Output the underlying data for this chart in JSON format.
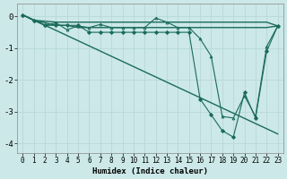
{
  "xlabel": "Humidex (Indice chaleur)",
  "ylabel": "",
  "background_color": "#cce8e8",
  "grid_color": "#b8d8d8",
  "line_color": "#1a6b5a",
  "xlim": [
    -0.5,
    23.5
  ],
  "ylim": [
    -4.3,
    0.4
  ],
  "yticks": [
    0,
    -1,
    -2,
    -3,
    -4
  ],
  "xticks": [
    0,
    1,
    2,
    3,
    4,
    5,
    6,
    7,
    8,
    9,
    10,
    11,
    12,
    13,
    14,
    15,
    16,
    17,
    18,
    19,
    20,
    21,
    22,
    23
  ],
  "series": [
    {
      "x": [
        0,
        1,
        2,
        3,
        4,
        5,
        6,
        7,
        8,
        9,
        10,
        11,
        12,
        13,
        14,
        15,
        16,
        17,
        18,
        19,
        20,
        21,
        22,
        23
      ],
      "y": [
        0.05,
        -0.12,
        -0.15,
        -0.18,
        -0.18,
        -0.18,
        -0.18,
        -0.18,
        -0.18,
        -0.18,
        -0.18,
        -0.18,
        -0.18,
        -0.18,
        -0.18,
        -0.18,
        -0.18,
        -0.18,
        -0.18,
        -0.18,
        -0.18,
        -0.18,
        -0.18,
        -0.3
      ],
      "marker": null,
      "linestyle": "-",
      "linewidth": 1.0
    },
    {
      "x": [
        0,
        1,
        2,
        3,
        4,
        5,
        6,
        7,
        8,
        9,
        10,
        11,
        12,
        13,
        14,
        15,
        16,
        17,
        18,
        19,
        20,
        21,
        22,
        23
      ],
      "y": [
        0.05,
        -0.12,
        -0.2,
        -0.28,
        -0.28,
        -0.35,
        -0.35,
        -0.35,
        -0.35,
        -0.35,
        -0.35,
        -0.35,
        -0.35,
        -0.35,
        -0.35,
        -0.35,
        -0.35,
        -0.35,
        -0.35,
        -0.35,
        -0.35,
        -0.35,
        -0.35,
        -0.3
      ],
      "marker": null,
      "linestyle": "-",
      "linewidth": 1.0
    },
    {
      "x": [
        0,
        23
      ],
      "y": [
        0.05,
        -3.7
      ],
      "marker": null,
      "linestyle": "-",
      "linewidth": 1.0
    },
    {
      "x": [
        0,
        1,
        2,
        3,
        4,
        5,
        6,
        7,
        8,
        9,
        10,
        11,
        12,
        13,
        14,
        15,
        16,
        17,
        18,
        19,
        20,
        21,
        22,
        23
      ],
      "y": [
        0.05,
        -0.12,
        -0.28,
        -0.2,
        -0.42,
        -0.3,
        -0.35,
        -0.25,
        -0.35,
        -0.35,
        -0.35,
        -0.35,
        -0.05,
        -0.18,
        -0.35,
        -0.35,
        -0.7,
        -1.25,
        -3.15,
        -3.2,
        -2.5,
        -3.15,
        -0.95,
        -0.3
      ],
      "marker": "^",
      "linestyle": "-",
      "linewidth": 0.8,
      "markersize": 2.0
    },
    {
      "comment": "diamond markers - flat near -0.2 to x=15, then drops to -2.6 at x=16, -3.1 at x=17, -3.6 at x=18, -3.8 at x=19, back to -2.4 at x=20, -3.2 at x=21, -1.1 at x=22, -0.3 at x=23",
      "x": [
        0,
        1,
        2,
        3,
        4,
        5,
        6,
        7,
        8,
        9,
        10,
        11,
        12,
        13,
        14,
        15,
        16,
        17,
        18,
        19,
        20,
        21,
        22,
        23
      ],
      "y": [
        0.05,
        -0.12,
        -0.28,
        -0.28,
        -0.28,
        -0.28,
        -0.5,
        -0.5,
        -0.5,
        -0.5,
        -0.5,
        -0.5,
        -0.5,
        -0.5,
        -0.5,
        -0.5,
        -2.6,
        -3.1,
        -3.6,
        -3.8,
        -2.4,
        -3.2,
        -1.1,
        -0.3
      ],
      "marker": "D",
      "linestyle": "-",
      "linewidth": 0.8,
      "markersize": 2.0
    }
  ]
}
